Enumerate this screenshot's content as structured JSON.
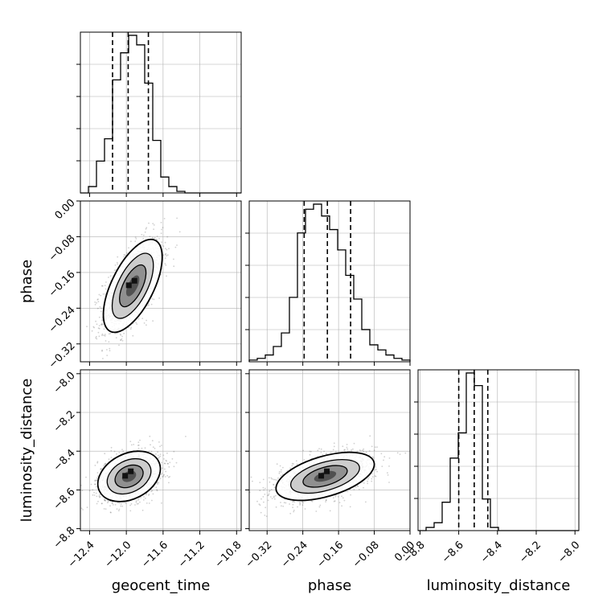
{
  "chart_data": {
    "type": "corner",
    "parameters": [
      "geocent_time",
      "phase",
      "luminosity_distance"
    ],
    "grid": true,
    "quantile_line_style": "dashed",
    "ranges": {
      "geocent_time": [
        -12.5,
        -10.75
      ],
      "phase": [
        -0.36,
        0.0
      ],
      "luminosity_distance": [
        -8.81,
        -7.98
      ]
    },
    "ticks": {
      "geocent_time": [
        -12.4,
        -12.0,
        -11.6,
        -11.2,
        -10.8
      ],
      "phase": [
        -0.32,
        -0.24,
        -0.16,
        -0.08,
        0.0
      ],
      "luminosity_distance": [
        -8.8,
        -8.6,
        -8.4,
        -8.2,
        -8.0
      ]
    },
    "tick_labels": {
      "geocent_time": [
        "−12.4",
        "−12.0",
        "−11.6",
        "−11.2",
        "−10.8"
      ],
      "phase": [
        "−0.32",
        "−0.24",
        "−0.16",
        "−0.08",
        "0.00"
      ],
      "luminosity_distance": [
        "−8.8",
        "−8.6",
        "−8.4",
        "−8.2",
        "−8.0"
      ]
    },
    "histograms": {
      "geocent_time": {
        "bin_start": -12.5,
        "bin_width": 0.0875,
        "counts": [
          0,
          4,
          20,
          34,
          71,
          88,
          99,
          93,
          69,
          33,
          10,
          4,
          1,
          0,
          0,
          0,
          0,
          0,
          0,
          0
        ],
        "quantiles": [
          -12.15,
          -11.98,
          -11.76
        ]
      },
      "phase": {
        "bin_start": -0.36,
        "bin_width": 0.018,
        "counts": [
          1,
          2,
          4,
          9,
          17,
          38,
          76,
          90,
          93,
          86,
          78,
          66,
          51,
          37,
          19,
          10,
          7,
          4,
          2,
          1
        ],
        "quantiles": [
          -0.237,
          -0.185,
          -0.133
        ]
      },
      "luminosity_distance": {
        "bin_start": -8.81,
        "bin_width": 0.0415,
        "counts": [
          0,
          2,
          5,
          18,
          46,
          62,
          100,
          92,
          20,
          2,
          0,
          0,
          0,
          0,
          0,
          0,
          0,
          0,
          0,
          0
        ],
        "quantiles": [
          -8.6,
          -8.52,
          -8.45
        ]
      }
    },
    "pair_density": [
      {
        "x": "geocent_time",
        "y": "phase",
        "mean": [
          -11.93,
          -0.19
        ],
        "std": [
          0.16,
          0.052
        ],
        "correlation": 0.62
      },
      {
        "x": "geocent_time",
        "y": "luminosity_distance",
        "mean": [
          -11.97,
          -8.53
        ],
        "std": [
          0.17,
          0.065
        ],
        "correlation": 0.3
      },
      {
        "x": "phase",
        "y": "luminosity_distance",
        "mean": [
          -0.19,
          -8.53
        ],
        "std": [
          0.055,
          0.062
        ],
        "correlation": 0.5
      }
    ]
  }
}
